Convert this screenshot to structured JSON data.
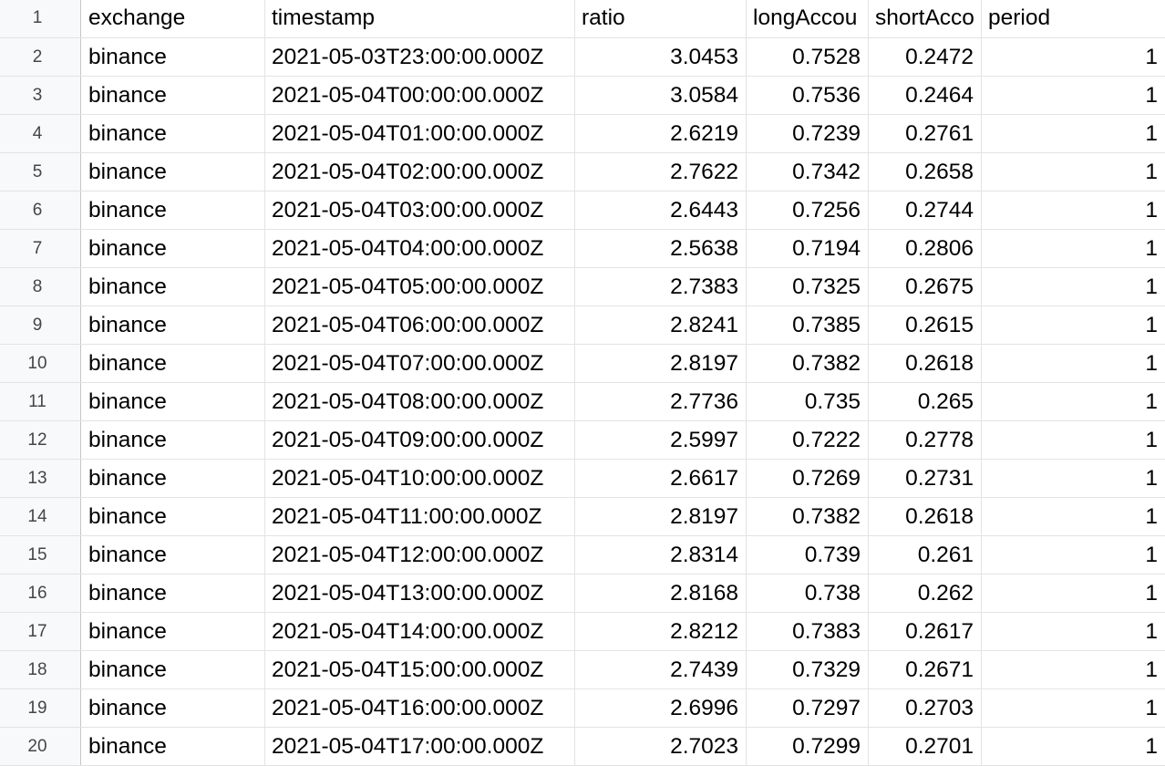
{
  "columns": [
    "exchange",
    "timestamp",
    "ratio",
    "longAccou",
    "shortAcco",
    "period"
  ],
  "header_row_number": "1",
  "rows": [
    {
      "n": "2",
      "exchange": "binance",
      "timestamp": "2021-05-03T23:00:00.000Z",
      "ratio": "3.0453",
      "long": "0.7528",
      "short": "0.2472",
      "period": "1"
    },
    {
      "n": "3",
      "exchange": "binance",
      "timestamp": "2021-05-04T00:00:00.000Z",
      "ratio": "3.0584",
      "long": "0.7536",
      "short": "0.2464",
      "period": "1"
    },
    {
      "n": "4",
      "exchange": "binance",
      "timestamp": "2021-05-04T01:00:00.000Z",
      "ratio": "2.6219",
      "long": "0.7239",
      "short": "0.2761",
      "period": "1"
    },
    {
      "n": "5",
      "exchange": "binance",
      "timestamp": "2021-05-04T02:00:00.000Z",
      "ratio": "2.7622",
      "long": "0.7342",
      "short": "0.2658",
      "period": "1"
    },
    {
      "n": "6",
      "exchange": "binance",
      "timestamp": "2021-05-04T03:00:00.000Z",
      "ratio": "2.6443",
      "long": "0.7256",
      "short": "0.2744",
      "period": "1"
    },
    {
      "n": "7",
      "exchange": "binance",
      "timestamp": "2021-05-04T04:00:00.000Z",
      "ratio": "2.5638",
      "long": "0.7194",
      "short": "0.2806",
      "period": "1"
    },
    {
      "n": "8",
      "exchange": "binance",
      "timestamp": "2021-05-04T05:00:00.000Z",
      "ratio": "2.7383",
      "long": "0.7325",
      "short": "0.2675",
      "period": "1"
    },
    {
      "n": "9",
      "exchange": "binance",
      "timestamp": "2021-05-04T06:00:00.000Z",
      "ratio": "2.8241",
      "long": "0.7385",
      "short": "0.2615",
      "period": "1"
    },
    {
      "n": "10",
      "exchange": "binance",
      "timestamp": "2021-05-04T07:00:00.000Z",
      "ratio": "2.8197",
      "long": "0.7382",
      "short": "0.2618",
      "period": "1"
    },
    {
      "n": "11",
      "exchange": "binance",
      "timestamp": "2021-05-04T08:00:00.000Z",
      "ratio": "2.7736",
      "long": "0.735",
      "short": "0.265",
      "period": "1"
    },
    {
      "n": "12",
      "exchange": "binance",
      "timestamp": "2021-05-04T09:00:00.000Z",
      "ratio": "2.5997",
      "long": "0.7222",
      "short": "0.2778",
      "period": "1"
    },
    {
      "n": "13",
      "exchange": "binance",
      "timestamp": "2021-05-04T10:00:00.000Z",
      "ratio": "2.6617",
      "long": "0.7269",
      "short": "0.2731",
      "period": "1"
    },
    {
      "n": "14",
      "exchange": "binance",
      "timestamp": "2021-05-04T11:00:00.000Z",
      "ratio": "2.8197",
      "long": "0.7382",
      "short": "0.2618",
      "period": "1"
    },
    {
      "n": "15",
      "exchange": "binance",
      "timestamp": "2021-05-04T12:00:00.000Z",
      "ratio": "2.8314",
      "long": "0.739",
      "short": "0.261",
      "period": "1"
    },
    {
      "n": "16",
      "exchange": "binance",
      "timestamp": "2021-05-04T13:00:00.000Z",
      "ratio": "2.8168",
      "long": "0.738",
      "short": "0.262",
      "period": "1"
    },
    {
      "n": "17",
      "exchange": "binance",
      "timestamp": "2021-05-04T14:00:00.000Z",
      "ratio": "2.8212",
      "long": "0.7383",
      "short": "0.2617",
      "period": "1"
    },
    {
      "n": "18",
      "exchange": "binance",
      "timestamp": "2021-05-04T15:00:00.000Z",
      "ratio": "2.7439",
      "long": "0.7329",
      "short": "0.2671",
      "period": "1"
    },
    {
      "n": "19",
      "exchange": "binance",
      "timestamp": "2021-05-04T16:00:00.000Z",
      "ratio": "2.6996",
      "long": "0.7297",
      "short": "0.2703",
      "period": "1"
    },
    {
      "n": "20",
      "exchange": "binance",
      "timestamp": "2021-05-04T17:00:00.000Z",
      "ratio": "2.7023",
      "long": "0.7299",
      "short": "0.2701",
      "period": "1"
    }
  ]
}
